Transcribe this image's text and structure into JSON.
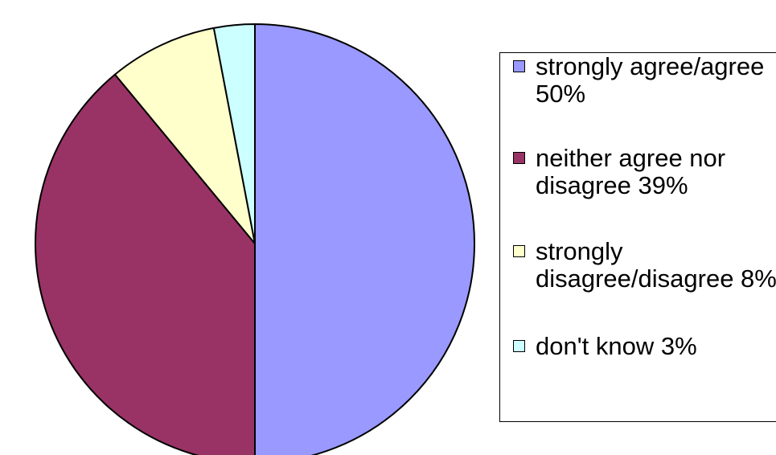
{
  "chart_data": {
    "type": "pie",
    "title": "",
    "slices": [
      {
        "label": "strongly agree/agree 50%",
        "value": 50,
        "color": "#9999FF"
      },
      {
        "label": "neither agree nor disagree 39%",
        "value": 39,
        "color": "#993366"
      },
      {
        "label": "strongly disagree/disagree 8%",
        "value": 8,
        "color": "#FFFFCC"
      },
      {
        "label": "don't know 3%",
        "value": 3,
        "color": "#CCFFFF"
      }
    ],
    "start": "12 o'clock",
    "direction": "clockwise",
    "legend": {
      "position": "right",
      "items": [
        "strongly agree/agree 50%",
        "neither agree nor disagree 39%",
        "strongly disagree/disagree 8%",
        "don't know 3%"
      ]
    }
  }
}
